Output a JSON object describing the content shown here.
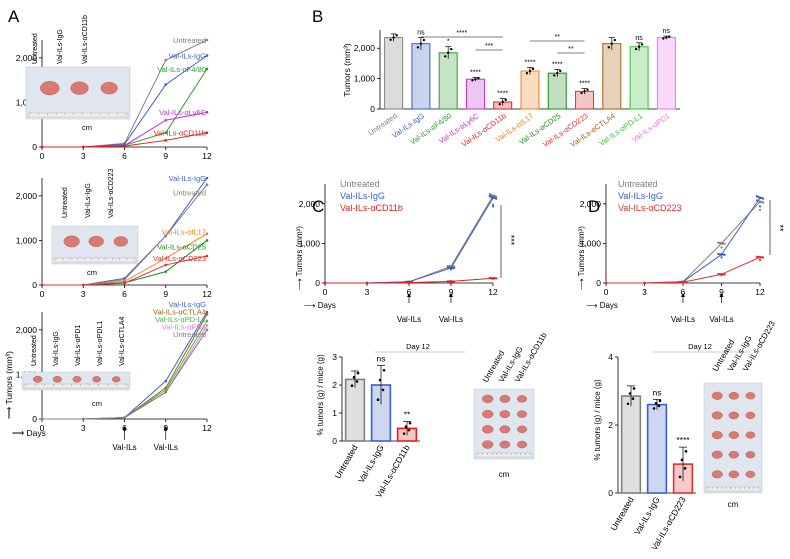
{
  "panel_letters": [
    "A",
    "B",
    "C",
    "D"
  ],
  "colors": {
    "untreated": "#808080",
    "igg": "#3a5fcd",
    "f480": "#2e9a2e",
    "ly6c": "#c032d8",
    "cd11b": "#e01e1e",
    "il17": "#f08020",
    "cd25": "#1e8c1e",
    "cd223": "#e03030",
    "ctla4": "#a86010",
    "pdl1": "#38c038",
    "pd1": "#f070f0",
    "axis": "#000"
  },
  "common": {
    "days_label": "Days",
    "tumors_label": "Tumors (mm³)",
    "cm": "cm",
    "val_ils": "Val-ILs",
    "day12": "Day 12",
    "pct_label": "% tumors (g) / mice (g)"
  },
  "chart_data": [
    {
      "id": "A1",
      "type": "line",
      "x": [
        0,
        3,
        6,
        9,
        12
      ],
      "xlim": [
        0,
        12
      ],
      "ylim": [
        0,
        2400
      ],
      "yticks": [
        0,
        1000,
        2000
      ],
      "ytick_labels": [
        "0",
        "1,000",
        "2,000"
      ],
      "photo_labels": [
        "Untreated",
        "Val-ILs-IgG",
        "Val-ILs-αCD11b"
      ],
      "series": [
        {
          "name": "Untreated",
          "key": "untreated",
          "values": [
            0,
            0,
            80,
            1950,
            2400
          ]
        },
        {
          "name": "Val-ILs-IgG",
          "key": "igg",
          "values": [
            0,
            0,
            60,
            1400,
            2050
          ]
        },
        {
          "name": "Val-ILs-αF4/80",
          "key": "f480",
          "values": [
            0,
            0,
            40,
            320,
            1750
          ]
        },
        {
          "name": "Val-ILs-αLy6C",
          "key": "ly6c",
          "values": [
            0,
            0,
            30,
            600,
            780
          ]
        },
        {
          "name": "Val-ILs-αCD11b",
          "key": "cd11b",
          "values": [
            0,
            0,
            20,
            150,
            320
          ]
        }
      ]
    },
    {
      "id": "A2",
      "type": "line",
      "x": [
        0,
        3,
        6,
        9,
        12
      ],
      "xlim": [
        0,
        12
      ],
      "ylim": [
        0,
        2400
      ],
      "yticks": [
        0,
        1000,
        2000
      ],
      "ytick_labels": [
        "0",
        "1,000",
        "2,000"
      ],
      "photo_labels": [
        "Untreated",
        "Val-ILs-IgG",
        "Val-ILs-αCD223"
      ],
      "series": [
        {
          "name": "Val-ILs-IgG",
          "key": "igg",
          "values": [
            0,
            0,
            150,
            1100,
            2400
          ]
        },
        {
          "name": "Untreated",
          "key": "untreated",
          "values": [
            0,
            0,
            120,
            1100,
            2250
          ]
        },
        {
          "name": "Val-ILs-αIL17",
          "key": "il17",
          "values": [
            0,
            0,
            80,
            600,
            1150
          ]
        },
        {
          "name": "Val-ILs-αCD25",
          "key": "cd25",
          "values": [
            0,
            0,
            50,
            300,
            1000
          ]
        },
        {
          "name": "Val-ILs-αCD223",
          "key": "cd223",
          "values": [
            0,
            0,
            40,
            450,
            650
          ]
        }
      ]
    },
    {
      "id": "A3",
      "type": "line",
      "x": [
        0,
        3,
        6,
        9,
        12
      ],
      "xlim": [
        0,
        12
      ],
      "ylim": [
        0,
        2400
      ],
      "yticks": [
        0,
        1000,
        2000
      ],
      "ytick_labels": [
        "0",
        "1,000",
        "2,000"
      ],
      "photo_labels": [
        "Untreated",
        "Val-ILs-IgG",
        "Val-ILs-αPD1",
        "Val-ILs-αPDL1",
        "Val-ILs-αCTLA4"
      ],
      "series": [
        {
          "name": "Val-ILs-IgG",
          "key": "igg",
          "values": [
            0,
            0,
            30,
            850,
            2400
          ]
        },
        {
          "name": "Val-ILs-αCTLA4",
          "key": "ctla4",
          "values": [
            0,
            0,
            30,
            700,
            2350
          ]
        },
        {
          "name": "Val-ILs-αPD-L1",
          "key": "pdl1",
          "values": [
            0,
            0,
            30,
            650,
            2200
          ]
        },
        {
          "name": "Val-ILs-αPD1",
          "key": "pd1",
          "values": [
            0,
            0,
            30,
            600,
            2100
          ]
        },
        {
          "name": "Untreated",
          "key": "untreated",
          "values": [
            0,
            0,
            30,
            600,
            2000
          ]
        }
      ]
    },
    {
      "id": "B",
      "type": "bar",
      "ylim": [
        0,
        2600
      ],
      "yticks": [
        0,
        1000,
        2000
      ],
      "ytick_labels": [
        "0",
        "1,000",
        "2,000"
      ],
      "ylabel": "Tumors (mm³)",
      "categories": [
        "Untreated",
        "Val-ILs-IgG",
        "Val-ILs-αF4/80",
        "Val-ILs-αLy6C",
        "Val-ILs-αCD11b",
        "Val-ILs-αIL17",
        "Val-ILs-αCD25",
        "Val-ILs-αCD223",
        "Val-ILs-αCTLA4",
        "Val-ILs-αPD-L1",
        "Val-ILs-αPD1"
      ],
      "keys": [
        "untreated",
        "igg",
        "f480",
        "ly6c",
        "cd11b",
        "il17",
        "cd25",
        "cd223",
        "ctla4",
        "pdl1",
        "pd1"
      ],
      "values": [
        2350,
        2150,
        1850,
        980,
        230,
        1250,
        1180,
        580,
        2150,
        2050,
        2350
      ],
      "errors": [
        120,
        200,
        200,
        60,
        120,
        120,
        120,
        90,
        200,
        130,
        50
      ],
      "sig": [
        "",
        "ns",
        "*",
        "****",
        "****",
        "****",
        "****",
        "****",
        "",
        "ns",
        "ns"
      ],
      "brackets": [
        {
          "from": 1,
          "to": 4,
          "label": "****"
        },
        {
          "from": 3,
          "to": 4,
          "label": "***"
        },
        {
          "from": 5,
          "to": 7,
          "label": "**"
        },
        {
          "from": 6,
          "to": 7,
          "label": "**"
        }
      ]
    },
    {
      "id": "C_line",
      "type": "line",
      "x": [
        0,
        3,
        6,
        9,
        12
      ],
      "xlim": [
        0,
        12
      ],
      "ylim": [
        0,
        2500
      ],
      "yticks": [
        0,
        1000,
        2000
      ],
      "ytick_labels": [
        "0",
        "1,000",
        "2,000"
      ],
      "legend": [
        "Untreated",
        "Val-ILs-IgG",
        "Val-ILs-αCD11b"
      ],
      "significance": "***",
      "series": [
        {
          "name": "Untreated",
          "key": "untreated",
          "values": [
            0,
            0,
            30,
            420,
            2200
          ]
        },
        {
          "name": "Val-ILs-IgG",
          "key": "igg",
          "values": [
            0,
            0,
            30,
            380,
            2150
          ]
        },
        {
          "name": "Val-ILs-αCD11b",
          "key": "cd11b",
          "values": [
            0,
            0,
            10,
            40,
            120
          ]
        }
      ]
    },
    {
      "id": "C_bar",
      "type": "bar",
      "ylim": [
        0,
        3
      ],
      "yticks": [
        0,
        1,
        2,
        3
      ],
      "ytick_labels": [
        "0",
        "1",
        "2",
        "3"
      ],
      "title": "Day 12",
      "categories": [
        "Untreated",
        "Val-ILs-IgG",
        "Val-ILs-αCD11b"
      ],
      "keys": [
        "untreated",
        "igg",
        "cd11b"
      ],
      "values": [
        2.2,
        2.0,
        0.45
      ],
      "errors": [
        0.3,
        0.7,
        0.25
      ],
      "sig": [
        "",
        "ns",
        "**"
      ],
      "photo_labels": [
        "Untreated",
        "Val-ILs-IgG",
        "Val-ILs-αCD11b"
      ]
    },
    {
      "id": "D_line",
      "type": "line",
      "x": [
        0,
        3,
        6,
        9,
        12
      ],
      "xlim": [
        0,
        12
      ],
      "ylim": [
        0,
        2500
      ],
      "yticks": [
        0,
        1000,
        2000
      ],
      "ytick_labels": [
        "0",
        "1,000",
        "2,000"
      ],
      "legend": [
        "Untreated",
        "Val-ILs-IgG",
        "Val-ILs-αCD223"
      ],
      "significance": "**",
      "series": [
        {
          "name": "Untreated",
          "key": "untreated",
          "values": [
            0,
            0,
            30,
            1000,
            2050
          ]
        },
        {
          "name": "Val-ILs-IgG",
          "key": "igg",
          "values": [
            0,
            0,
            30,
            720,
            2150
          ]
        },
        {
          "name": "Val-ILs-αCD223",
          "key": "cd223",
          "values": [
            0,
            0,
            20,
            220,
            650
          ]
        }
      ]
    },
    {
      "id": "D_bar",
      "type": "bar",
      "ylim": [
        0,
        4
      ],
      "yticks": [
        0,
        2,
        4
      ],
      "ytick_labels": [
        "0",
        "2",
        "4"
      ],
      "title": "Day 12",
      "categories": [
        "Untreated",
        "Val-ILs-IgG",
        "Val-ILs-αCD223"
      ],
      "keys": [
        "untreated",
        "igg",
        "cd223"
      ],
      "values": [
        2.85,
        2.6,
        0.85
      ],
      "errors": [
        0.3,
        0.15,
        0.5
      ],
      "sig": [
        "",
        "ns",
        "****"
      ],
      "photo_labels": [
        "Untreated",
        "Val-ILs-IgG",
        "Val-ILs-αCD223"
      ]
    }
  ]
}
